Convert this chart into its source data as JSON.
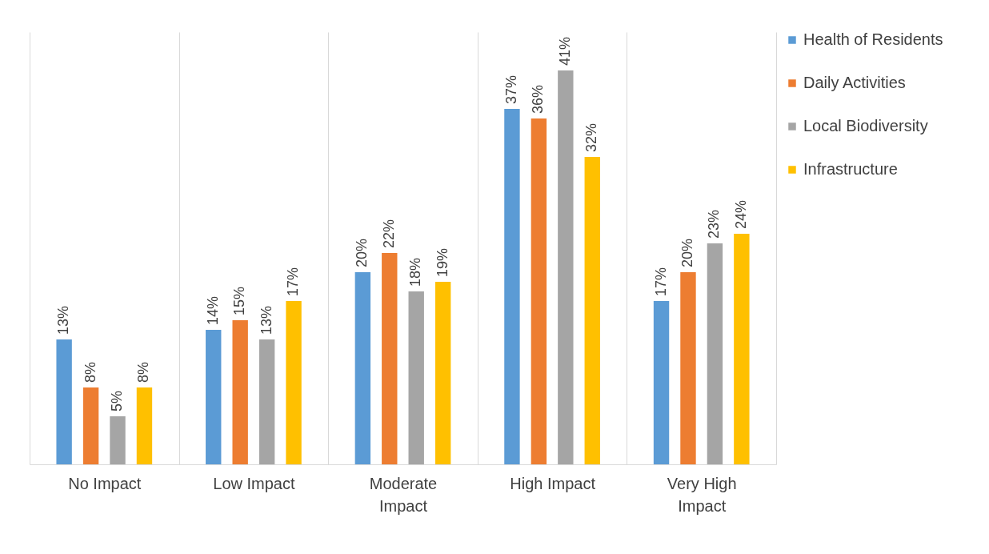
{
  "chart_data": {
    "type": "bar",
    "categories": [
      "No Impact",
      "Low Impact",
      "Moderate Impact",
      "High Impact",
      "Very High Impact"
    ],
    "series": [
      {
        "name": "Health of Residents",
        "color": "#5b9bd5",
        "values": [
          13,
          14,
          20,
          37,
          17
        ],
        "value_labels": [
          "13%",
          "14%",
          "20%",
          "37%",
          "17%"
        ]
      },
      {
        "name": "Daily Activities",
        "color": "#ed7d31",
        "values": [
          8,
          15,
          22,
          36,
          20
        ],
        "value_labels": [
          "8%",
          "15%",
          "22%",
          "36%",
          "20%"
        ]
      },
      {
        "name": "Local Biodiversity",
        "color": "#a5a5a5",
        "values": [
          5,
          13,
          18,
          41,
          23
        ],
        "value_labels": [
          "5%",
          "13%",
          "18%",
          "41%",
          "23%"
        ]
      },
      {
        "name": "Infrastructure",
        "color": "#ffc000",
        "values": [
          8,
          17,
          19,
          32,
          24
        ],
        "value_labels": [
          "8%",
          "17%",
          "19%",
          "32%",
          "24%"
        ]
      }
    ],
    "grid": "x",
    "legend": "right",
    "tick_labels": "x"
  }
}
